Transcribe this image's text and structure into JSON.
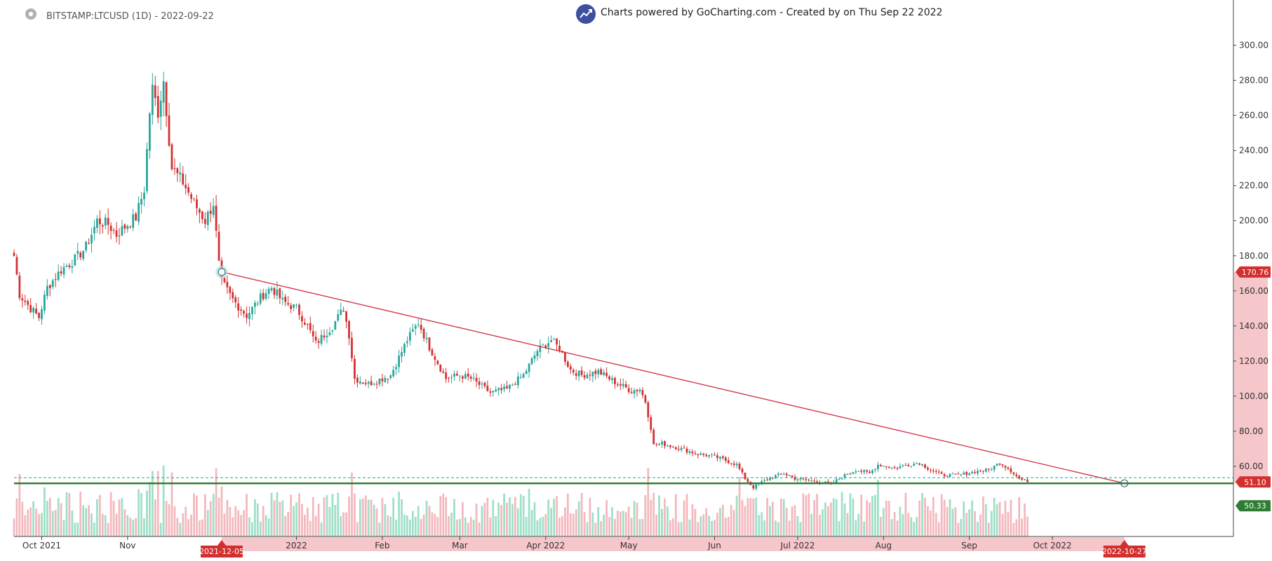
{
  "header": {
    "symbol": "BITSTAMP:LTCUSD (1D) - 2022-09-22",
    "credit": "Charts powered by GoCharting.com - Created by  on Thu Sep 22 2022"
  },
  "icons": [
    "settings-gear-icon",
    "gocharting-chart-icon"
  ],
  "colors": {
    "bullish": "#26a69a",
    "bearish": "#d32f2f",
    "trendline": "#d32f45",
    "support": "#2e7d32",
    "price_tag": "#d32f2f",
    "volume_bull": "#9fdfc8",
    "volume_bear": "#f3b8bd"
  },
  "chart_data": {
    "type": "candlestick",
    "ylim": [
      45,
      305
    ],
    "y_ticks": [
      "300.00",
      "280.00",
      "260.00",
      "240.00",
      "220.00",
      "200.00",
      "180.00",
      "160.00",
      "140.00",
      "120.00",
      "100.00",
      "80.00",
      "60.00"
    ],
    "x_labels": [
      "Oct 2021",
      "Nov",
      "2022",
      "Feb",
      "Mar",
      "Apr 2022",
      "May",
      "Jun",
      "Jul 2022",
      "Aug",
      "Sep",
      "Oct 2022"
    ],
    "x_label_dates": [
      "2021-10-01",
      "2021-11-01",
      "2022-01-01",
      "2022-02-01",
      "2022-03-01",
      "2022-04-01",
      "2022-05-01",
      "2022-06-01",
      "2022-07-01",
      "2022-08-01",
      "2022-09-01",
      "2022-10-01"
    ],
    "x_range": [
      "2021-09-21",
      "2022-11-08"
    ],
    "close_anchors": [
      [
        "2021-09-21",
        180
      ],
      [
        "2021-09-23",
        158
      ],
      [
        "2021-09-27",
        150
      ],
      [
        "2021-09-30",
        145
      ],
      [
        "2021-10-03",
        162
      ],
      [
        "2021-10-08",
        172
      ],
      [
        "2021-10-13",
        178
      ],
      [
        "2021-10-17",
        185
      ],
      [
        "2021-10-21",
        200
      ],
      [
        "2021-10-25",
        198
      ],
      [
        "2021-10-28",
        192
      ],
      [
        "2021-11-01",
        198
      ],
      [
        "2021-11-04",
        202
      ],
      [
        "2021-11-07",
        218
      ],
      [
        "2021-11-09",
        262
      ],
      [
        "2021-11-10",
        275
      ],
      [
        "2021-11-12",
        262
      ],
      [
        "2021-11-14",
        280
      ],
      [
        "2021-11-17",
        230
      ],
      [
        "2021-11-21",
        222
      ],
      [
        "2021-11-25",
        210
      ],
      [
        "2021-11-29",
        200
      ],
      [
        "2021-12-02",
        210
      ],
      [
        "2021-12-04",
        175
      ],
      [
        "2021-12-05",
        165
      ],
      [
        "2021-12-09",
        155
      ],
      [
        "2021-12-14",
        146
      ],
      [
        "2021-12-20",
        158
      ],
      [
        "2021-12-23",
        162
      ],
      [
        "2021-12-27",
        154
      ],
      [
        "2022-01-01",
        150
      ],
      [
        "2022-01-05",
        140
      ],
      [
        "2022-01-08",
        130
      ],
      [
        "2022-01-14",
        140
      ],
      [
        "2022-01-18",
        150
      ],
      [
        "2022-01-20",
        135
      ],
      [
        "2022-01-22",
        110
      ],
      [
        "2022-01-27",
        107
      ],
      [
        "2022-02-04",
        112
      ],
      [
        "2022-02-10",
        132
      ],
      [
        "2022-02-14",
        142
      ],
      [
        "2022-02-18",
        128
      ],
      [
        "2022-02-24",
        110
      ],
      [
        "2022-03-01",
        112
      ],
      [
        "2022-03-05",
        110
      ],
      [
        "2022-03-12",
        102
      ],
      [
        "2022-03-18",
        104
      ],
      [
        "2022-03-24",
        112
      ],
      [
        "2022-03-29",
        126
      ],
      [
        "2022-04-03",
        132
      ],
      [
        "2022-04-06",
        127
      ],
      [
        "2022-04-10",
        115
      ],
      [
        "2022-04-14",
        112
      ],
      [
        "2022-04-20",
        114
      ],
      [
        "2022-04-26",
        108
      ],
      [
        "2022-05-02",
        103
      ],
      [
        "2022-05-05",
        104
      ],
      [
        "2022-05-07",
        97
      ],
      [
        "2022-05-09",
        82
      ],
      [
        "2022-05-10",
        72
      ],
      [
        "2022-05-13",
        73
      ],
      [
        "2022-05-20",
        70
      ],
      [
        "2022-05-26",
        67
      ],
      [
        "2022-05-31",
        66
      ],
      [
        "2022-06-04",
        64
      ],
      [
        "2022-06-09",
        61
      ],
      [
        "2022-06-12",
        53
      ],
      [
        "2022-06-15",
        48
      ],
      [
        "2022-06-18",
        51
      ],
      [
        "2022-06-22",
        54
      ],
      [
        "2022-06-26",
        56
      ],
      [
        "2022-06-30",
        53
      ],
      [
        "2022-07-05",
        52
      ],
      [
        "2022-07-10",
        51
      ],
      [
        "2022-07-13",
        50
      ],
      [
        "2022-07-17",
        54
      ],
      [
        "2022-07-22",
        58
      ],
      [
        "2022-07-27",
        56
      ],
      [
        "2022-07-30",
        61
      ],
      [
        "2022-08-05",
        59
      ],
      [
        "2022-08-10",
        61
      ],
      [
        "2022-08-14",
        62
      ],
      [
        "2022-08-18",
        58
      ],
      [
        "2022-08-22",
        55
      ],
      [
        "2022-08-28",
        55
      ],
      [
        "2022-09-03",
        57
      ],
      [
        "2022-09-08",
        58
      ],
      [
        "2022-09-12",
        62
      ],
      [
        "2022-09-15",
        59
      ],
      [
        "2022-09-19",
        53
      ],
      [
        "2022-09-22",
        51.1
      ]
    ],
    "trendline": {
      "start": [
        "2021-12-05",
        170.76
      ],
      "end": [
        "2022-10-27",
        50.33
      ]
    },
    "support_level": 50.33,
    "last_price": 51.1,
    "price_tags": [
      "170.76",
      "51.10",
      "50.33"
    ],
    "date_tags": [
      "2021-12-05",
      "2022-10-27"
    ]
  }
}
